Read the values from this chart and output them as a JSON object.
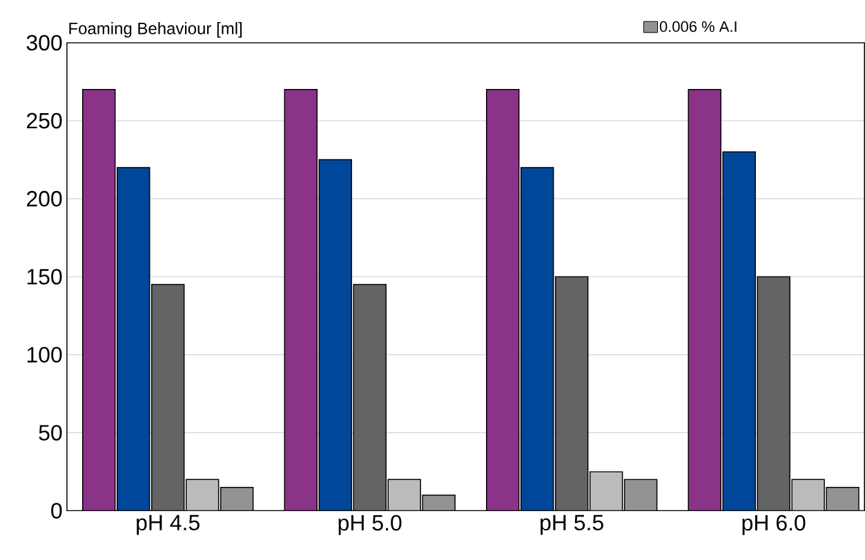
{
  "chart_data": {
    "type": "bar",
    "ylabel": "Foaming Behaviour [ml]",
    "categories": [
      "pH 4.5",
      "pH 5.0",
      "pH 5.5",
      "pH 6.0"
    ],
    "series": [
      {
        "color": "#8b3389",
        "values": [
          270,
          270,
          270,
          270
        ]
      },
      {
        "color": "#00479a",
        "values": [
          220,
          225,
          220,
          230
        ]
      },
      {
        "color": "#646464",
        "values": [
          145,
          145,
          150,
          150
        ]
      },
      {
        "color": "#bbbbbb",
        "values": [
          20,
          20,
          25,
          20
        ]
      },
      {
        "name": "0.006 % A.I",
        "color": "#939393",
        "values": [
          15,
          10,
          20,
          15
        ]
      }
    ],
    "ylim": [
      0,
      300
    ],
    "yticks": [
      0,
      50,
      100,
      150,
      200,
      250,
      300
    ],
    "grid": "y",
    "legend": "top right"
  }
}
